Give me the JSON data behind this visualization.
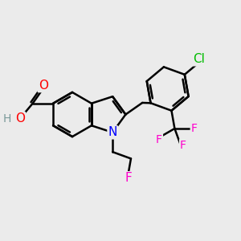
{
  "bg": "#ebebeb",
  "bond_color": "#000000",
  "bond_width": 1.8,
  "atom_colors": {
    "O": "#ff0000",
    "N": "#0000ff",
    "F": "#ff00cc",
    "Cl": "#00bb00",
    "H": "#7a9a9a"
  },
  "font_size": 10,
  "fig_size": [
    3.0,
    3.0
  ],
  "dpi": 100
}
